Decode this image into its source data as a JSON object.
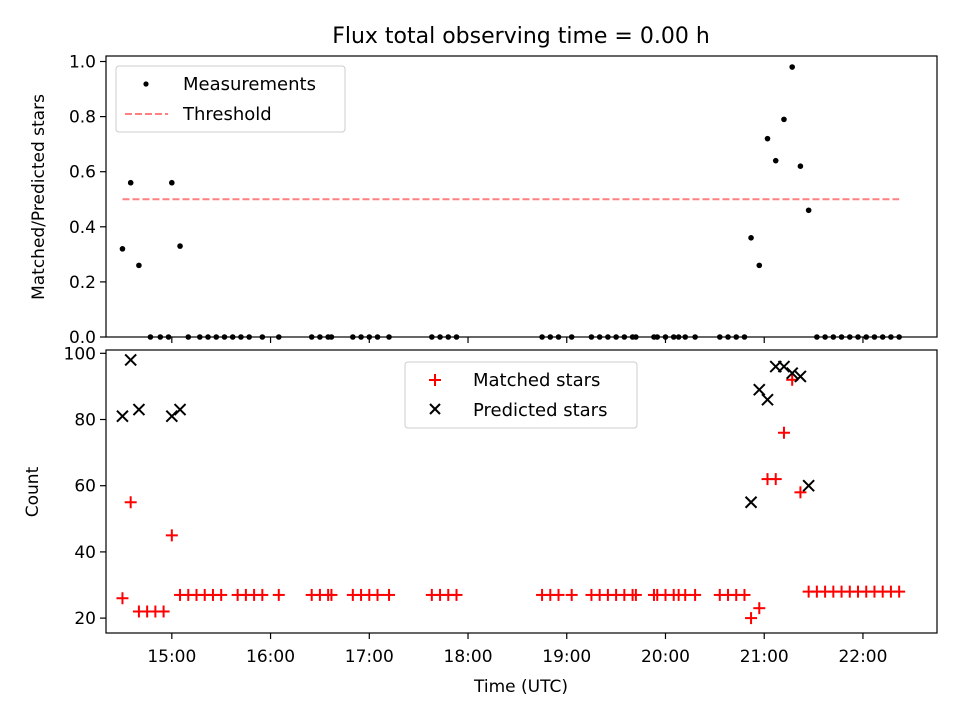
{
  "chart_data": [
    {
      "type": "scatter",
      "title": "Flux total observing time = 0.00 h",
      "xlabel": "",
      "ylabel": "Matched/Predicted stars",
      "xlim": [
        "14:20",
        "22:45"
      ],
      "ylim": [
        0,
        1.02
      ],
      "yticks": [
        0.0,
        0.2,
        0.4,
        0.6,
        0.8,
        1.0
      ],
      "ytick_labels": [
        "0.0",
        "0.2",
        "0.4",
        "0.6",
        "0.8",
        "1.0"
      ],
      "legend": {
        "placement": "top-left"
      },
      "series": [
        {
          "name": "Measurements",
          "kind": "points",
          "color": "#000000",
          "points": [
            [
              "14:30",
              0.32
            ],
            [
              "14:35",
              0.56
            ],
            [
              "14:40",
              0.26
            ],
            [
              "14:47",
              0.0
            ],
            [
              "14:53",
              0.0
            ],
            [
              "14:58",
              0.0
            ],
            [
              "15:00",
              0.56
            ],
            [
              "15:05",
              0.33
            ],
            [
              "15:10",
              0.0
            ],
            [
              "15:17",
              0.0
            ],
            [
              "15:22",
              0.0
            ],
            [
              "15:27",
              0.0
            ],
            [
              "15:32",
              0.0
            ],
            [
              "15:37",
              0.0
            ],
            [
              "15:42",
              0.0
            ],
            [
              "15:47",
              0.0
            ],
            [
              "15:55",
              0.0
            ],
            [
              "16:05",
              0.0
            ],
            [
              "16:25",
              0.0
            ],
            [
              "16:30",
              0.0
            ],
            [
              "16:35",
              0.0
            ],
            [
              "16:37",
              0.0
            ],
            [
              "16:50",
              0.0
            ],
            [
              "16:55",
              0.0
            ],
            [
              "17:00",
              0.0
            ],
            [
              "17:05",
              0.0
            ],
            [
              "17:12",
              0.0
            ],
            [
              "17:38",
              0.0
            ],
            [
              "17:43",
              0.0
            ],
            [
              "17:48",
              0.0
            ],
            [
              "17:53",
              0.0
            ],
            [
              "18:45",
              0.0
            ],
            [
              "18:50",
              0.0
            ],
            [
              "18:55",
              0.0
            ],
            [
              "19:03",
              0.0
            ],
            [
              "19:15",
              0.0
            ],
            [
              "19:20",
              0.0
            ],
            [
              "19:25",
              0.0
            ],
            [
              "19:30",
              0.0
            ],
            [
              "19:35",
              0.0
            ],
            [
              "19:40",
              0.0
            ],
            [
              "19:42",
              0.0
            ],
            [
              "19:53",
              0.0
            ],
            [
              "19:55",
              0.0
            ],
            [
              "20:00",
              0.0
            ],
            [
              "20:05",
              0.0
            ],
            [
              "20:08",
              0.0
            ],
            [
              "20:12",
              0.0
            ],
            [
              "20:18",
              0.0
            ],
            [
              "20:33",
              0.0
            ],
            [
              "20:38",
              0.0
            ],
            [
              "20:43",
              0.0
            ],
            [
              "20:48",
              0.0
            ],
            [
              "20:52",
              0.36
            ],
            [
              "20:57",
              0.26
            ],
            [
              "21:02",
              0.72
            ],
            [
              "21:07",
              0.64
            ],
            [
              "21:12",
              0.79
            ],
            [
              "21:17",
              0.98
            ],
            [
              "21:22",
              0.62
            ],
            [
              "21:27",
              0.46
            ],
            [
              "21:32",
              0.0
            ],
            [
              "21:37",
              0.0
            ],
            [
              "21:42",
              0.0
            ],
            [
              "21:47",
              0.0
            ],
            [
              "21:52",
              0.0
            ],
            [
              "21:57",
              0.0
            ],
            [
              "22:02",
              0.0
            ],
            [
              "22:07",
              0.0
            ],
            [
              "22:12",
              0.0
            ],
            [
              "22:17",
              0.0
            ],
            [
              "22:22",
              0.0
            ]
          ]
        },
        {
          "name": "Threshold",
          "kind": "dashed-line",
          "color": "#ff8080",
          "points": [
            [
              "14:30",
              0.5
            ],
            [
              "22:22",
              0.5
            ]
          ]
        }
      ]
    },
    {
      "type": "scatter",
      "title": "",
      "xlabel": "Time (UTC)",
      "ylabel": "Count",
      "xlim": [
        "14:20",
        "22:45"
      ],
      "ylim": [
        15.5,
        101
      ],
      "yticks": [
        20,
        40,
        60,
        80,
        100
      ],
      "ytick_labels": [
        "20",
        "40",
        "60",
        "80",
        "100"
      ],
      "xticks": [
        "15:00",
        "16:00",
        "17:00",
        "18:00",
        "19:00",
        "20:00",
        "21:00",
        "22:00"
      ],
      "xtick_labels": [
        "15:00",
        "16:00",
        "17:00",
        "18:00",
        "19:00",
        "20:00",
        "21:00",
        "22:00"
      ],
      "legend": {
        "placement": "top-center"
      },
      "series": [
        {
          "name": "Matched stars",
          "kind": "plus",
          "color": "#ff0000",
          "points": [
            [
              "14:30",
              26
            ],
            [
              "14:35",
              55
            ],
            [
              "14:40",
              22
            ],
            [
              "14:45",
              22
            ],
            [
              "14:50",
              22
            ],
            [
              "14:55",
              22
            ],
            [
              "15:00",
              45
            ],
            [
              "15:05",
              27
            ],
            [
              "15:10",
              27
            ],
            [
              "15:15",
              27
            ],
            [
              "15:20",
              27
            ],
            [
              "15:25",
              27
            ],
            [
              "15:30",
              27
            ],
            [
              "15:40",
              27
            ],
            [
              "15:45",
              27
            ],
            [
              "15:50",
              27
            ],
            [
              "15:55",
              27
            ],
            [
              "16:05",
              27
            ],
            [
              "16:25",
              27
            ],
            [
              "16:30",
              27
            ],
            [
              "16:35",
              27
            ],
            [
              "16:37",
              27
            ],
            [
              "16:50",
              27
            ],
            [
              "16:55",
              27
            ],
            [
              "17:00",
              27
            ],
            [
              "17:05",
              27
            ],
            [
              "17:12",
              27
            ],
            [
              "17:38",
              27
            ],
            [
              "17:43",
              27
            ],
            [
              "17:48",
              27
            ],
            [
              "17:53",
              27
            ],
            [
              "18:45",
              27
            ],
            [
              "18:50",
              27
            ],
            [
              "18:55",
              27
            ],
            [
              "19:03",
              27
            ],
            [
              "19:15",
              27
            ],
            [
              "19:20",
              27
            ],
            [
              "19:25",
              27
            ],
            [
              "19:30",
              27
            ],
            [
              "19:35",
              27
            ],
            [
              "19:40",
              27
            ],
            [
              "19:42",
              27
            ],
            [
              "19:53",
              27
            ],
            [
              "19:55",
              27
            ],
            [
              "20:00",
              27
            ],
            [
              "20:05",
              27
            ],
            [
              "20:08",
              27
            ],
            [
              "20:12",
              27
            ],
            [
              "20:18",
              27
            ],
            [
              "20:33",
              27
            ],
            [
              "20:38",
              27
            ],
            [
              "20:43",
              27
            ],
            [
              "20:48",
              27
            ],
            [
              "20:52",
              20
            ],
            [
              "20:57",
              23
            ],
            [
              "21:02",
              62
            ],
            [
              "21:07",
              62
            ],
            [
              "21:12",
              76
            ],
            [
              "21:17",
              92
            ],
            [
              "21:22",
              58
            ],
            [
              "21:27",
              28
            ],
            [
              "21:32",
              28
            ],
            [
              "21:37",
              28
            ],
            [
              "21:42",
              28
            ],
            [
              "21:47",
              28
            ],
            [
              "21:52",
              28
            ],
            [
              "21:57",
              28
            ],
            [
              "22:02",
              28
            ],
            [
              "22:07",
              28
            ],
            [
              "22:12",
              28
            ],
            [
              "22:17",
              28
            ],
            [
              "22:22",
              28
            ]
          ]
        },
        {
          "name": "Predicted stars",
          "kind": "x",
          "color": "#000000",
          "points": [
            [
              "14:30",
              81
            ],
            [
              "14:35",
              98
            ],
            [
              "14:40",
              83
            ],
            [
              "15:00",
              81
            ],
            [
              "15:05",
              83
            ],
            [
              "20:52",
              55
            ],
            [
              "20:57",
              89
            ],
            [
              "21:02",
              86
            ],
            [
              "21:07",
              96
            ],
            [
              "21:12",
              96
            ],
            [
              "21:17",
              94
            ],
            [
              "21:22",
              93
            ],
            [
              "21:27",
              60
            ]
          ]
        }
      ]
    }
  ]
}
